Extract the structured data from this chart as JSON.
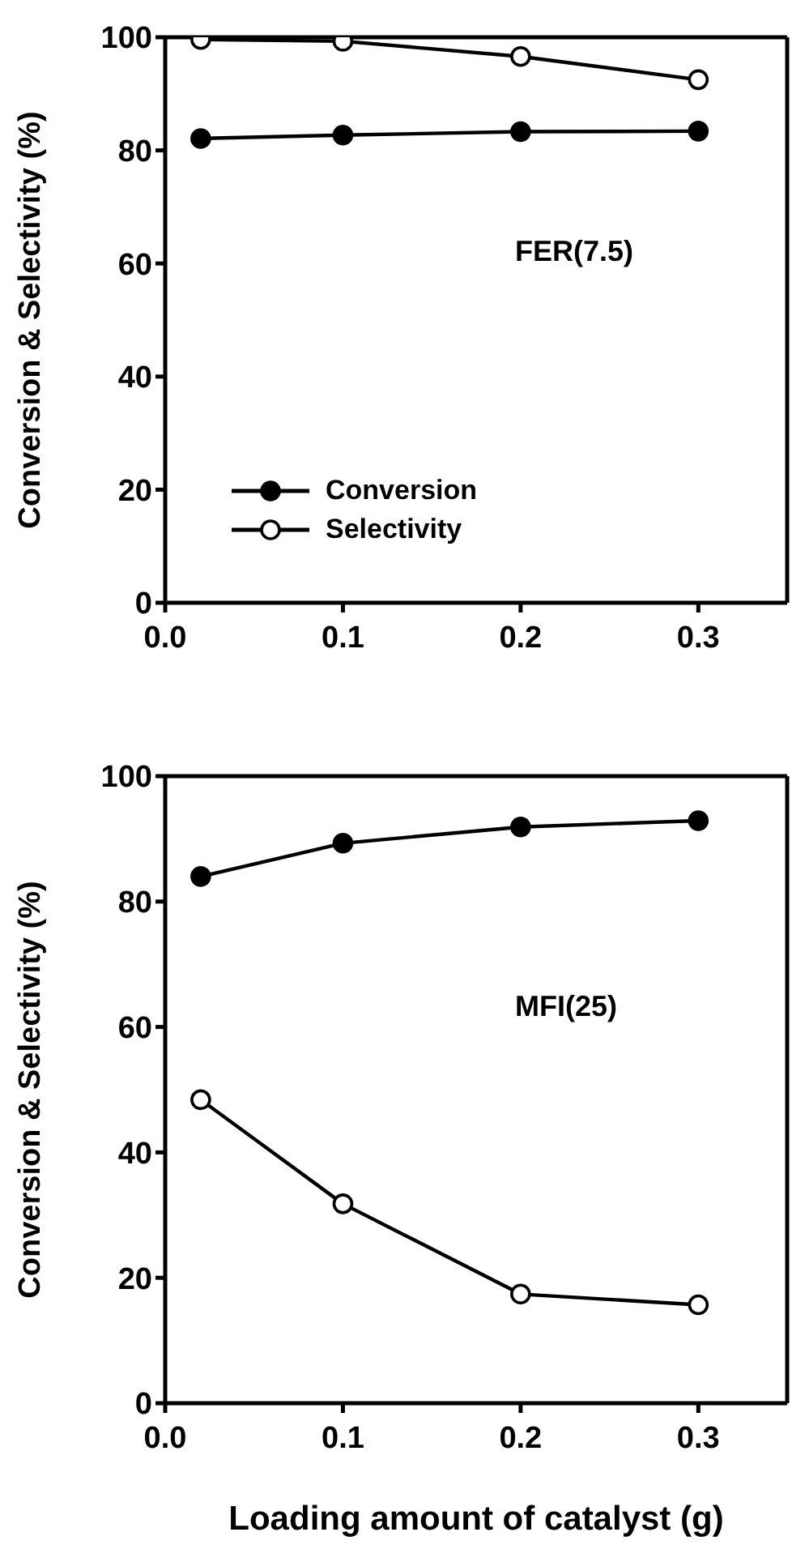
{
  "chart_data": [
    {
      "type": "line",
      "x": [
        0.02,
        0.1,
        0.2,
        0.3
      ],
      "xlim": [
        0,
        0.35
      ],
      "xticks": [
        {
          "value": 0,
          "label": "0.0"
        },
        0.1,
        0.2,
        0.3
      ],
      "ylim": [
        0,
        100
      ],
      "yticks": [
        0,
        20,
        40,
        60,
        80,
        100
      ],
      "ylabel": "Conversion & Selectivity (%)",
      "annotations": [
        "FER(7.5)"
      ],
      "legend": "bottom left",
      "marker": "circle",
      "line_style": "solid",
      "grid": false,
      "series": [
        {
          "name": "Conversion",
          "color": "#000000",
          "values": [
            82.1,
            82.7,
            83.3,
            83.4
          ]
        },
        {
          "name": "Selectivity",
          "color": "#000000",
          "values": [
            99.6,
            99.3,
            96.6,
            92.5
          ]
        }
      ]
    },
    {
      "type": "line",
      "x": [
        0.02,
        0.1,
        0.2,
        0.3
      ],
      "xlim": [
        0,
        0.35
      ],
      "xticks": [
        {
          "value": 0,
          "label": "0.0"
        },
        0.1,
        0.2,
        0.3
      ],
      "ylim": [
        0,
        100
      ],
      "yticks": [
        0,
        20,
        40,
        60,
        80,
        100
      ],
      "ylabel": "Conversion & Selectivity (%)",
      "xlabel": "Loading amount of catalyst (g)",
      "annotations": [
        "MFI(25)"
      ],
      "legend": false,
      "marker": "circle",
      "line_style": "solid",
      "grid": false,
      "series": [
        {
          "color": "#000000",
          "values": [
            84.0,
            89.3,
            91.9,
            92.9
          ]
        },
        {
          "color": "#000000",
          "values": [
            48.4,
            31.8,
            17.4,
            15.7
          ]
        }
      ]
    }
  ]
}
